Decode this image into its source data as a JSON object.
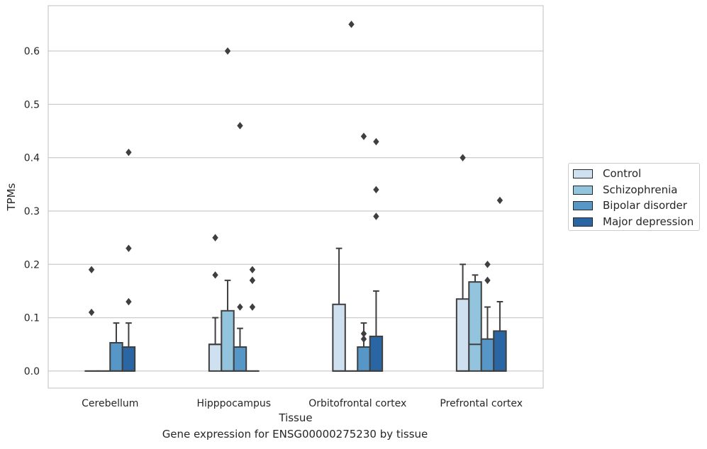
{
  "chart_data": {
    "type": "box",
    "title": "",
    "caption": "Gene expression for ENSG00000275230 by tissue",
    "xlabel": "Tissue",
    "ylabel": "TPMs",
    "ylim": [
      -0.032,
      0.685
    ],
    "yticks": [
      "0.0",
      "0.1",
      "0.2",
      "0.3",
      "0.4",
      "0.5",
      "0.6"
    ],
    "ytick_values": [
      0.0,
      0.1,
      0.2,
      0.3,
      0.4,
      0.5,
      0.6
    ],
    "categories": [
      "Cerebellum",
      "Hipppocampus",
      "Orbitofrontal cortex",
      "Prefrontal cortex"
    ],
    "grid": "horizontal",
    "legend_position": "right",
    "series": [
      {
        "name": "Control",
        "color": "#cfe0f1",
        "boxes": [
          {
            "q1": 0.0,
            "median": 0.0,
            "q3": 0.0,
            "whisker_low": 0.0,
            "whisker_high": 0.0,
            "outliers": [
              0.19,
              0.11
            ]
          },
          {
            "q1": 0.0,
            "median": 0.05,
            "q3": 0.05,
            "whisker_low": 0.0,
            "whisker_high": 0.1,
            "outliers": [
              0.25,
              0.18
            ]
          },
          {
            "q1": 0.0,
            "median": 0.0,
            "q3": 0.125,
            "whisker_low": 0.0,
            "whisker_high": 0.23,
            "outliers": []
          },
          {
            "q1": 0.0,
            "median": 0.0,
            "q3": 0.135,
            "whisker_low": 0.0,
            "whisker_high": 0.2,
            "outliers": [
              0.4
            ]
          }
        ]
      },
      {
        "name": "Schizophrenia",
        "color": "#93c4de",
        "boxes": [
          {
            "q1": 0.0,
            "median": 0.0,
            "q3": 0.0,
            "whisker_low": 0.0,
            "whisker_high": 0.0,
            "outliers": []
          },
          {
            "q1": 0.0,
            "median": 0.0,
            "q3": 0.113,
            "whisker_low": 0.0,
            "whisker_high": 0.17,
            "outliers": [
              0.6
            ]
          },
          {
            "q1": 0.0,
            "median": 0.0,
            "q3": 0.0,
            "whisker_low": 0.0,
            "whisker_high": 0.0,
            "outliers": [
              0.65
            ]
          },
          {
            "q1": 0.0,
            "median": 0.05,
            "q3": 0.167,
            "whisker_low": 0.0,
            "whisker_high": 0.18,
            "outliers": []
          }
        ]
      },
      {
        "name": "Bipolar disorder",
        "color": "#5797c7",
        "boxes": [
          {
            "q1": 0.0,
            "median": 0.0,
            "q3": 0.053,
            "whisker_low": 0.0,
            "whisker_high": 0.09,
            "outliers": []
          },
          {
            "q1": 0.0,
            "median": 0.0,
            "q3": 0.045,
            "whisker_low": 0.0,
            "whisker_high": 0.08,
            "outliers": [
              0.46,
              0.12
            ]
          },
          {
            "q1": 0.0,
            "median": 0.0,
            "q3": 0.045,
            "whisker_low": 0.0,
            "whisker_high": 0.09,
            "outliers": [
              0.44,
              0.07,
              0.06
            ]
          },
          {
            "q1": 0.0,
            "median": 0.0,
            "q3": 0.06,
            "whisker_low": 0.0,
            "whisker_high": 0.12,
            "outliers": [
              0.2,
              0.17
            ]
          }
        ]
      },
      {
        "name": "Major depression",
        "color": "#2a65a4",
        "boxes": [
          {
            "q1": 0.0,
            "median": 0.0,
            "q3": 0.045,
            "whisker_low": 0.0,
            "whisker_high": 0.09,
            "outliers": [
              0.41,
              0.23,
              0.13
            ]
          },
          {
            "q1": 0.0,
            "median": 0.0,
            "q3": 0.0,
            "whisker_low": 0.0,
            "whisker_high": 0.0,
            "outliers": [
              0.19,
              0.17,
              0.12
            ]
          },
          {
            "q1": 0.0,
            "median": 0.0,
            "q3": 0.065,
            "whisker_low": 0.0,
            "whisker_high": 0.15,
            "outliers": [
              0.43,
              0.34,
              0.29
            ]
          },
          {
            "q1": 0.0,
            "median": 0.0,
            "q3": 0.075,
            "whisker_low": 0.0,
            "whisker_high": 0.13,
            "outliers": [
              0.32
            ]
          }
        ]
      }
    ]
  }
}
